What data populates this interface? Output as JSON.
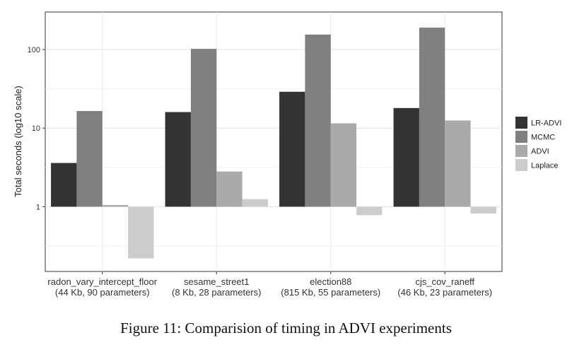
{
  "caption": "Figure 11: Comparision of timing in ADVI experiments",
  "chart_data": {
    "type": "bar",
    "ylabel": "Total seconds (log10 scale)",
    "xlabel": "",
    "yscale": "log10",
    "ylim": [
      0.15,
      300
    ],
    "yticks": [
      1,
      10,
      100
    ],
    "ytick_labels": [
      "1",
      "10",
      "100"
    ],
    "grid": true,
    "legend_position": "right",
    "categories": [
      "radon_vary_intercept_floor\n(44 Kb, 90 parameters)",
      "sesame_street1\n(8 Kb, 28 parameters)",
      "election88\n(815 Kb, 55 parameters)",
      "cjs_cov_raneff\n(46 Kb, 23 parameters)"
    ],
    "series": [
      {
        "name": "LR-ADVI",
        "color": "#333333",
        "values": [
          3.6,
          16,
          29,
          18
        ]
      },
      {
        "name": "MCMC",
        "color": "#808080",
        "values": [
          16.5,
          102,
          155,
          190
        ]
      },
      {
        "name": "ADVI",
        "color": "#aaaaaa",
        "values": [
          1.05,
          2.8,
          11.5,
          12.5
        ]
      },
      {
        "name": "Laplace",
        "color": "#cccccc",
        "values": [
          0.22,
          1.25,
          0.78,
          0.82
        ]
      }
    ]
  }
}
